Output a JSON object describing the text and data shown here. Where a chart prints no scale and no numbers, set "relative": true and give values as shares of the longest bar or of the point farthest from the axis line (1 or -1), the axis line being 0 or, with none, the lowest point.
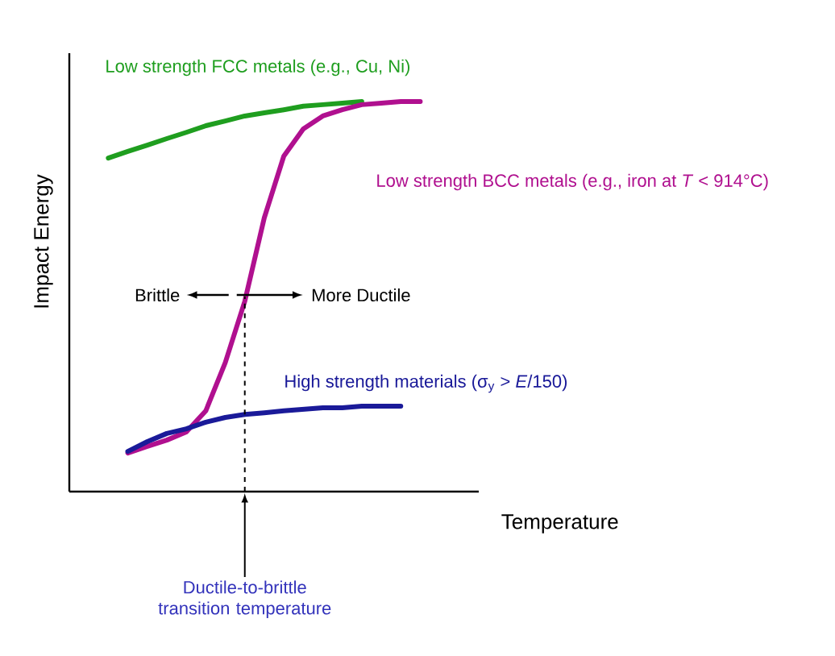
{
  "chart_data": {
    "type": "line",
    "relative": true,
    "xlabel": "Temperature",
    "ylabel": "Impact Energy",
    "categories": [
      null,
      null,
      null,
      null,
      null,
      null,
      null,
      null,
      null,
      null,
      null,
      null,
      null,
      null,
      null,
      null,
      null,
      null,
      null,
      null,
      null,
      null
    ],
    "series": [
      {
        "name": "Low strength FCC metals (e.g., Cu, Ni)",
        "color": "#1f9e1f",
        "values": [
          null,
          null,
          0.855,
          0.872,
          0.888,
          0.905,
          0.921,
          0.938,
          0.95,
          0.963,
          0.971,
          0.979,
          0.988,
          0.992,
          0.996,
          1,
          null,
          null,
          null,
          null,
          null,
          null
        ]
      },
      {
        "name": "Low strength BCC metals (e.g., iron at *T* < 914°C)",
        "color": "#b0108f",
        "values": [
          null,
          null,
          null,
          0.099,
          0.116,
          0.132,
          0.153,
          0.207,
          0.331,
          0.488,
          0.702,
          0.86,
          0.93,
          0.963,
          0.979,
          0.992,
          0.996,
          1,
          1,
          null,
          null,
          null
        ]
      },
      {
        "name": "High strength materials (σ$_{y}$ > *E*/150)",
        "color": "#1a1a99",
        "values": [
          null,
          null,
          null,
          0.103,
          0.128,
          0.149,
          0.161,
          0.178,
          0.19,
          0.198,
          0.202,
          0.207,
          0.211,
          0.215,
          0.215,
          0.219,
          0.219,
          0.219,
          null,
          null,
          null,
          null
        ]
      }
    ],
    "annotations": [
      "Brittle",
      "More Ductile",
      "Ductile-to-brittle transition temperature"
    ],
    "line_style": "solid"
  }
}
